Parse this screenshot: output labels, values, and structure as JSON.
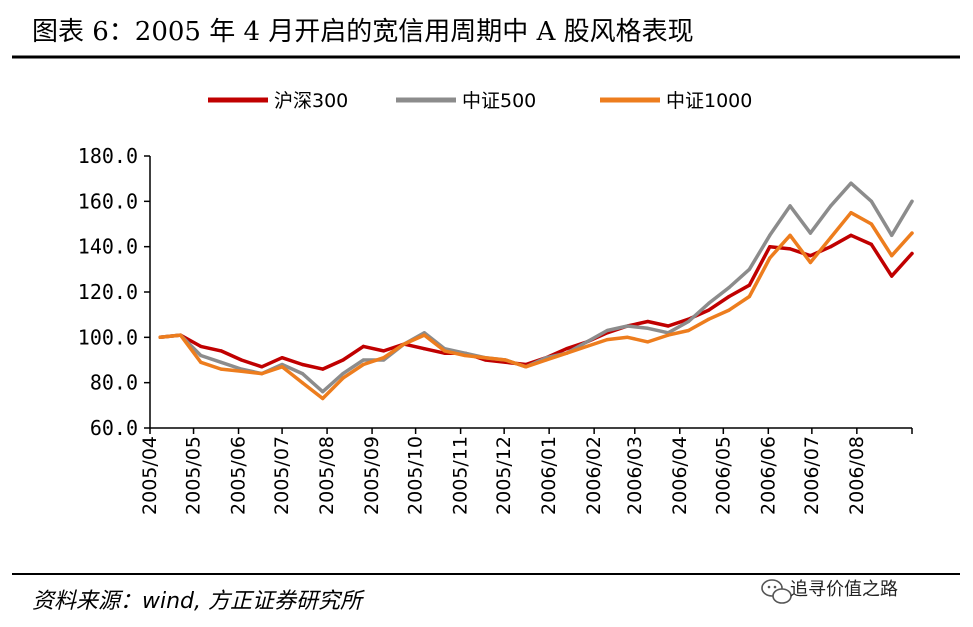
{
  "title": "图表 6：2005 年 4 月开启的宽信用周期中 A 股风格表现",
  "source": "资料来源：wind, 方正证券研究所",
  "watermark": "追寻价值之路",
  "icons": [
    "wechat-icon"
  ],
  "colors": {
    "hs300": "#c00000",
    "zz500": "#8c8c8c",
    "zz1000": "#ed7d1e",
    "title_rule": "#000000"
  },
  "chart_data": {
    "type": "line",
    "title": "",
    "xlabel": "",
    "ylabel": "",
    "ylim": [
      60,
      180
    ],
    "yticks": [
      "60.0",
      "80.0",
      "100.0",
      "120.0",
      "140.0",
      "160.0",
      "180.0"
    ],
    "x_tick_labels": [
      "2005/04",
      "2005/05",
      "2005/06",
      "2005/07",
      "2005/08",
      "2005/09",
      "2005/10",
      "2005/11",
      "2005/12",
      "2006/01",
      "2006/02",
      "2006/03",
      "2006/04",
      "2006/05",
      "2006/06",
      "2006/07",
      "2006/08"
    ],
    "x": [
      "2005/04/08",
      "2005/04/22",
      "2005/05/06",
      "2005/05/20",
      "2005/06/03",
      "2005/06/17",
      "2005/07/01",
      "2005/07/15",
      "2005/07/29",
      "2005/08/12",
      "2005/08/26",
      "2005/09/09",
      "2005/09/23",
      "2005/10/07",
      "2005/10/21",
      "2005/11/04",
      "2005/11/18",
      "2005/12/02",
      "2005/12/16",
      "2005/12/30",
      "2006/01/13",
      "2006/01/27",
      "2006/02/10",
      "2006/02/24",
      "2006/03/10",
      "2006/03/24",
      "2006/04/07",
      "2006/04/21",
      "2006/05/05",
      "2006/05/19",
      "2006/06/02",
      "2006/06/16",
      "2006/06/30",
      "2006/07/14",
      "2006/07/28",
      "2006/08/11",
      "2006/08/25",
      "2006/09/08"
    ],
    "legend_position": "top",
    "grid": false,
    "series": [
      {
        "name": "沪深300",
        "color": "#c00000",
        "values": [
          100,
          101,
          96,
          94,
          90,
          87,
          91,
          88,
          86,
          90,
          96,
          94,
          97,
          95,
          93,
          93,
          90,
          89,
          88,
          91,
          95,
          98,
          102,
          105,
          107,
          105,
          108,
          112,
          118,
          123,
          140,
          139,
          136,
          140,
          145,
          141,
          127,
          137
        ]
      },
      {
        "name": "中证500",
        "color": "#8c8c8c",
        "values": [
          100,
          101,
          92,
          89,
          86,
          84,
          88,
          84,
          76,
          84,
          90,
          90,
          97,
          102,
          95,
          93,
          91,
          90,
          87,
          91,
          93,
          98,
          103,
          105,
          104,
          102,
          107,
          115,
          122,
          130,
          145,
          158,
          146,
          158,
          168,
          160,
          145,
          160
        ]
      },
      {
        "name": "中证1000",
        "color": "#ed7d1e",
        "values": [
          100,
          101,
          89,
          86,
          85,
          84,
          87,
          80,
          73,
          82,
          88,
          91,
          97,
          101,
          94,
          92,
          91,
          90,
          87,
          90,
          93,
          96,
          99,
          100,
          98,
          101,
          103,
          108,
          112,
          118,
          135,
          145,
          133,
          144,
          155,
          150,
          136,
          146
        ]
      }
    ]
  }
}
